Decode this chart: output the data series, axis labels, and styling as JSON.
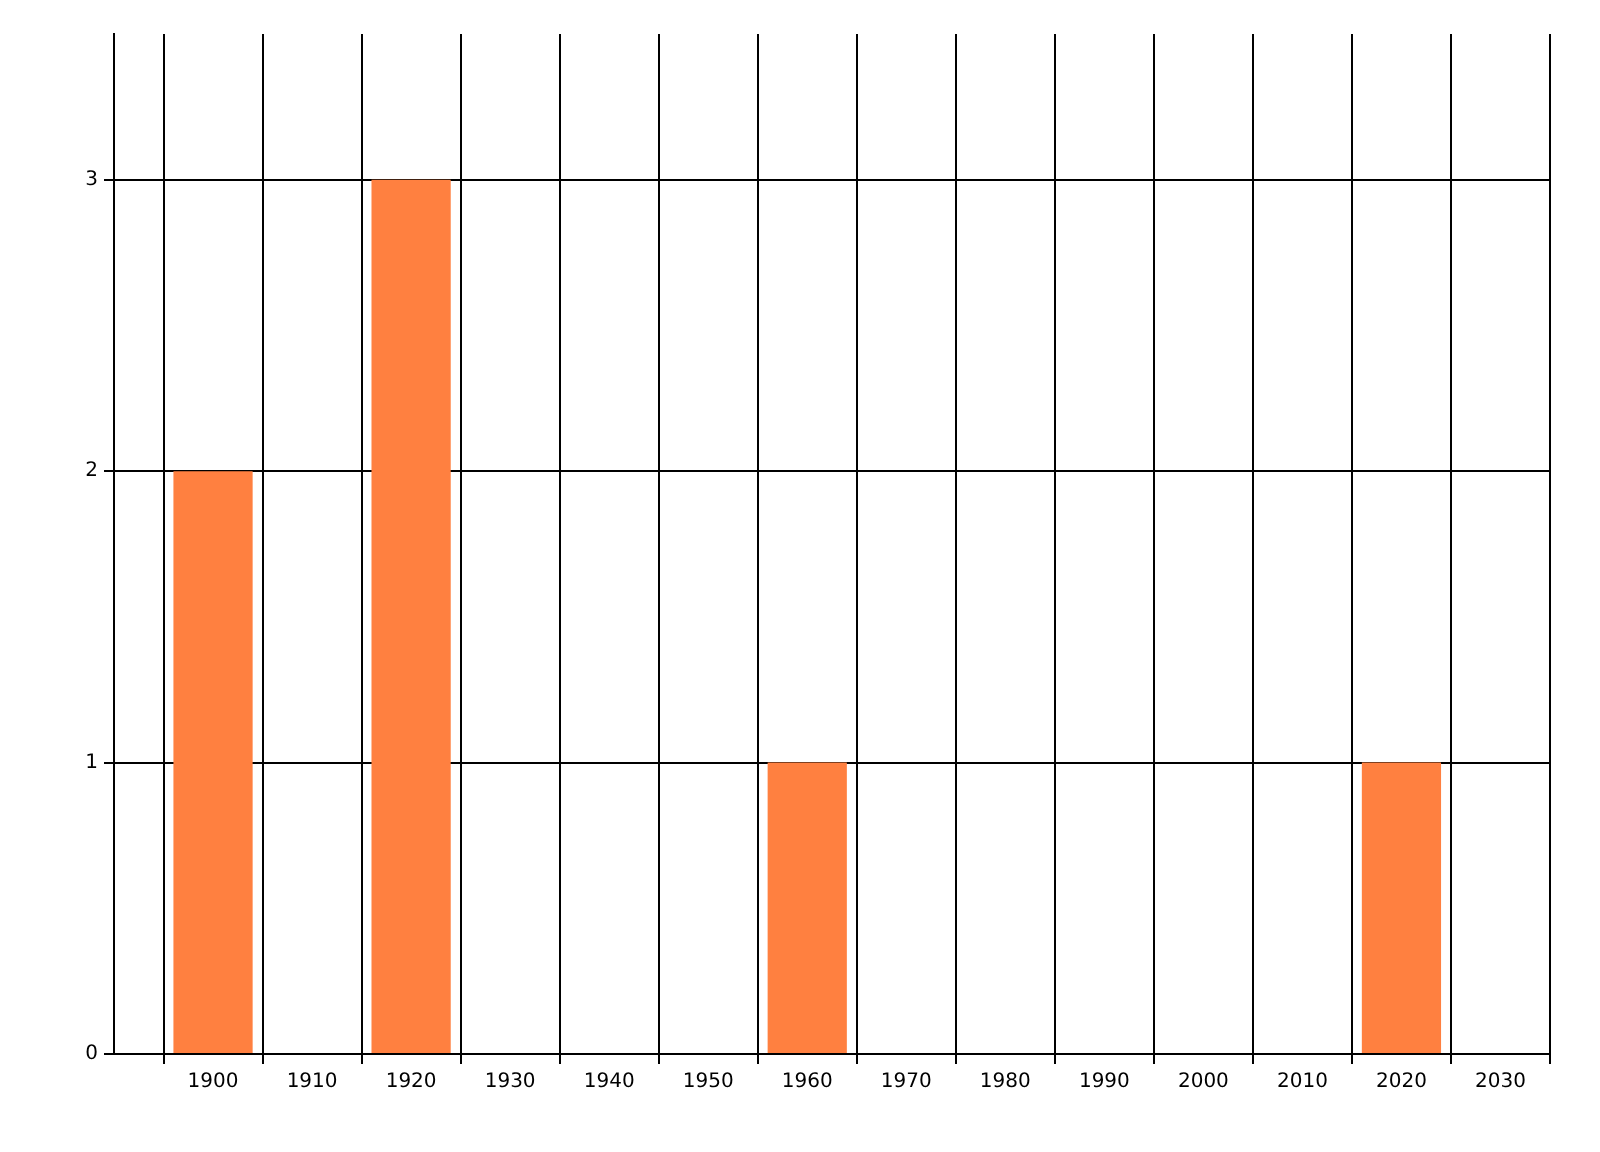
{
  "chart_data": {
    "type": "bar",
    "x": [
      1900,
      1920,
      1960,
      2020
    ],
    "values": [
      2,
      3,
      1,
      1
    ],
    "color": "#ff8040",
    "xlim": [
      1890,
      2035
    ],
    "xticks": [
      1900,
      1910,
      1920,
      1930,
      1940,
      1950,
      1960,
      1970,
      1980,
      1990,
      2000,
      2010,
      2020,
      2030
    ],
    "ylim": [
      0,
      3.5
    ],
    "yticks": [
      0,
      1,
      2,
      3
    ],
    "grid": true,
    "legend": false
  }
}
